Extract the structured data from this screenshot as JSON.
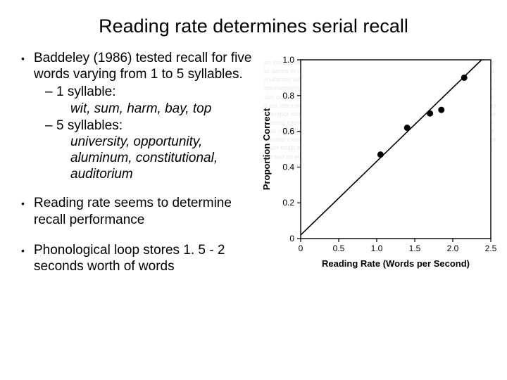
{
  "title": "Reading rate determines serial recall",
  "b1": {
    "text": "Baddeley (1986) tested recall for five words varying from 1 to 5 syllables.",
    "sub1_label": "1 syllable:",
    "sub1_examples": "wit, sum, harm, bay, top",
    "sub2_label": "5 syllables:",
    "sub2_examples": "university, opportunity, aluminum, constitutional, auditorium"
  },
  "b2": {
    "text": "Reading rate seems to determine recall performance"
  },
  "b3": {
    "text": "Phonological loop stores 1. 5 - 2 seconds worth of words"
  },
  "chart": {
    "type": "scatter-with-fit",
    "xlabel": "Reading Rate (Words per Second)",
    "ylabel": "Proportion Correct",
    "xlim": [
      0,
      2.5
    ],
    "xtick_step": 0.5,
    "xticks": [
      "0",
      "0.5",
      "1.0",
      "1.5",
      "2.0",
      "2.5"
    ],
    "ylim": [
      0,
      1.0
    ],
    "ytick_step": 0.2,
    "yticks": [
      "0",
      "0.2",
      "0.4",
      "0.6",
      "0.8",
      "1.0"
    ],
    "points": [
      {
        "x": 1.05,
        "y": 0.47
      },
      {
        "x": 1.4,
        "y": 0.62
      },
      {
        "x": 1.7,
        "y": 0.7
      },
      {
        "x": 1.85,
        "y": 0.72
      },
      {
        "x": 2.15,
        "y": 0.9
      }
    ],
    "fit_line": {
      "x0": 0,
      "y0": 0.02,
      "x1": 2.5,
      "y1": 1.05
    },
    "marker_color": "#000000",
    "marker_radius": 4.5,
    "line_color": "#000000",
    "axis_color": "#000000",
    "tick_font_size": 12,
    "label_font_size": 13,
    "background_color": "#ffffff"
  }
}
